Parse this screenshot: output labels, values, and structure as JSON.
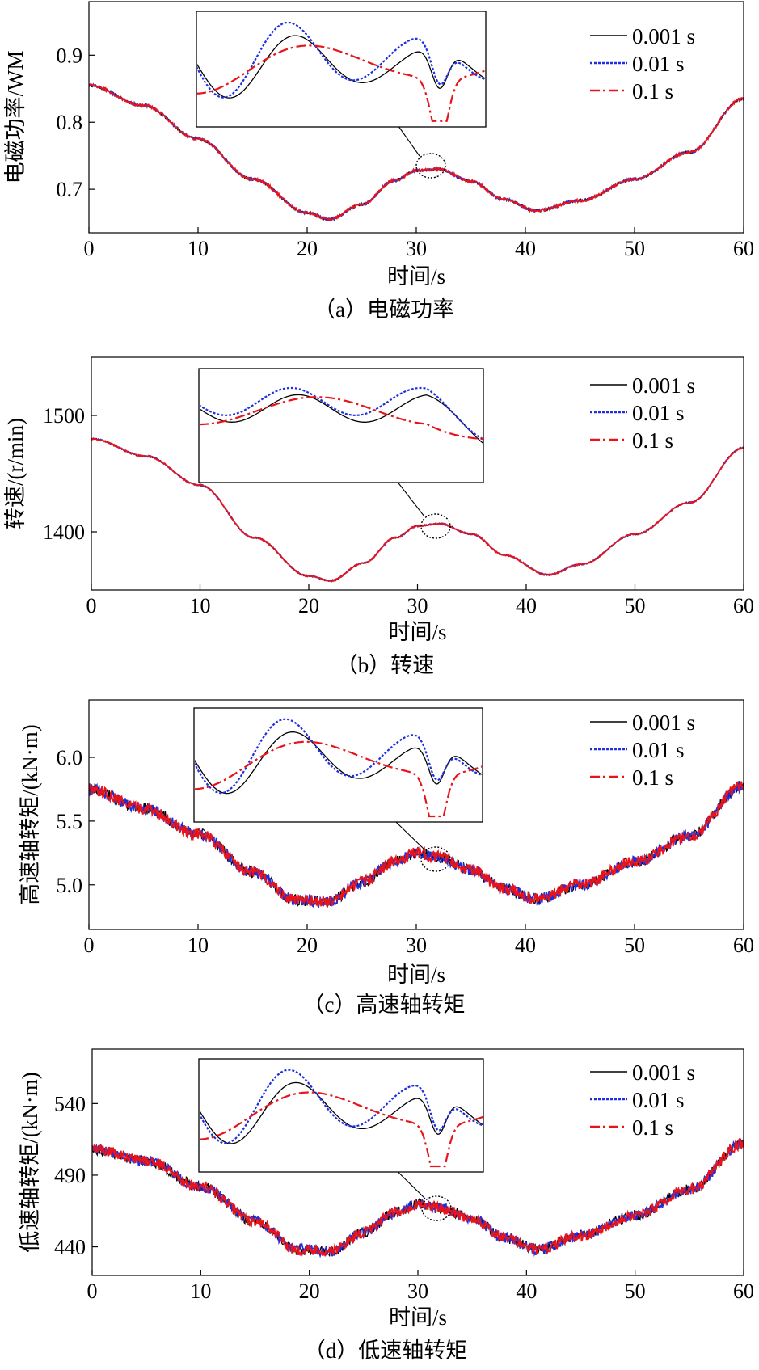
{
  "colors": {
    "s1": "#000000",
    "s2": "#1f2fe0",
    "s3": "#e8141c"
  },
  "chart_data": [
    {
      "type": "line",
      "caption": "（a）电磁功率",
      "xlabel": "时间/s",
      "ylabel": "电磁功率/WM",
      "xlim": [
        0,
        60
      ],
      "ylim": [
        0.635,
        0.98
      ],
      "xticks": [
        "0",
        "10",
        "20",
        "30",
        "40",
        "50",
        "60"
      ],
      "yticks": [
        0.7,
        0.8,
        0.9
      ],
      "ytick_labels": [
        "0.7",
        "0.8",
        "0.9"
      ],
      "x": [
        0,
        5,
        10,
        15,
        20,
        22,
        25,
        28,
        30,
        32,
        35,
        38,
        41,
        45,
        50,
        55,
        60
      ],
      "series": [
        {
          "name": "0.001 s",
          "values": [
            0.855,
            0.825,
            0.775,
            0.715,
            0.665,
            0.655,
            0.677,
            0.713,
            0.728,
            0.73,
            0.712,
            0.685,
            0.668,
            0.683,
            0.715,
            0.755,
            0.835
          ]
        },
        {
          "name": "0.01 s",
          "values": [
            0.855,
            0.825,
            0.775,
            0.715,
            0.665,
            0.655,
            0.677,
            0.713,
            0.728,
            0.73,
            0.712,
            0.685,
            0.668,
            0.683,
            0.715,
            0.755,
            0.835
          ]
        },
        {
          "name": "0.1 s",
          "values": [
            0.855,
            0.825,
            0.775,
            0.715,
            0.665,
            0.655,
            0.677,
            0.713,
            0.728,
            0.73,
            0.712,
            0.685,
            0.668,
            0.683,
            0.715,
            0.755,
            0.835
          ]
        }
      ],
      "noise": 0.002,
      "zoom_circle": {
        "x": 31.5,
        "y": 0.73
      },
      "legend_position": "top-right"
    },
    {
      "type": "line",
      "caption": "（b）转速",
      "xlabel": "时间/s",
      "ylabel": "转速/(r/min)",
      "xlim": [
        0,
        60
      ],
      "ylim": [
        1350,
        1550
      ],
      "xticks": [
        "0",
        "10",
        "20",
        "30",
        "40",
        "50",
        "60"
      ],
      "yticks": [
        1400,
        1500
      ],
      "ytick_labels": [
        "1400",
        "1500"
      ],
      "x": [
        0,
        5,
        10,
        15,
        20,
        22,
        25,
        28,
        30,
        32,
        35,
        38,
        42,
        45,
        50,
        55,
        60
      ],
      "series": [
        {
          "name": "0.001 s",
          "values": [
            1480,
            1465,
            1440,
            1395,
            1362,
            1358,
            1373,
            1395,
            1405,
            1407,
            1398,
            1380,
            1363,
            1372,
            1398,
            1425,
            1472
          ]
        },
        {
          "name": "0.01 s",
          "values": [
            1480,
            1465,
            1440,
            1395,
            1362,
            1358,
            1373,
            1395,
            1405,
            1407,
            1398,
            1380,
            1363,
            1372,
            1398,
            1425,
            1472
          ]
        },
        {
          "name": "0.1 s",
          "values": [
            1480,
            1465,
            1440,
            1395,
            1362,
            1358,
            1373,
            1395,
            1405,
            1407,
            1398,
            1380,
            1363,
            1372,
            1398,
            1425,
            1472
          ]
        }
      ],
      "noise": 0.6,
      "zoom_circle": {
        "x": 31.5,
        "y": 1406
      },
      "legend_position": "top-right"
    },
    {
      "type": "line",
      "caption": "（c）高速轴转矩",
      "xlabel": "时间/s",
      "ylabel": "高速轴转矩/(kN·m)",
      "xlim": [
        0,
        60
      ],
      "ylim": [
        4.65,
        6.45
      ],
      "xticks": [
        "0",
        "10",
        "20",
        "30",
        "40",
        "50",
        "60"
      ],
      "yticks": [
        5.0,
        5.5,
        6.0
      ],
      "ytick_labels": [
        "5.0",
        "5.5",
        "6.0"
      ],
      "x": [
        0,
        5,
        10,
        15,
        19,
        22,
        25,
        28,
        30,
        32,
        35,
        38,
        41,
        45,
        50,
        55,
        60
      ],
      "series": [
        {
          "name": "0.001 s",
          "values": [
            5.75,
            5.6,
            5.4,
            5.1,
            4.88,
            4.87,
            5.02,
            5.18,
            5.25,
            5.22,
            5.12,
            4.97,
            4.89,
            5.0,
            5.18,
            5.38,
            5.78
          ]
        },
        {
          "name": "0.01 s",
          "values": [
            5.75,
            5.6,
            5.4,
            5.1,
            4.88,
            4.87,
            5.02,
            5.18,
            5.25,
            5.22,
            5.12,
            4.97,
            4.89,
            5.0,
            5.18,
            5.38,
            5.78
          ]
        },
        {
          "name": "0.1 s",
          "values": [
            5.75,
            5.6,
            5.4,
            5.1,
            4.88,
            4.87,
            5.02,
            5.18,
            5.25,
            5.22,
            5.12,
            4.97,
            4.89,
            5.0,
            5.18,
            5.38,
            5.78
          ]
        }
      ],
      "noise": 0.045,
      "zoom_circle": {
        "x": 31.8,
        "y": 5.22
      },
      "legend_position": "top-right"
    },
    {
      "type": "line",
      "caption": "（d）低速轴转矩",
      "xlabel": "时间/s",
      "ylabel": "低速轴转矩/(kN·m)",
      "xlim": [
        0,
        60
      ],
      "ylim": [
        420,
        578
      ],
      "xticks": [
        "0",
        "10",
        "20",
        "30",
        "40",
        "50",
        "60"
      ],
      "yticks": [
        440,
        490,
        540
      ],
      "ytick_labels": [
        "440",
        "490",
        "540"
      ],
      "x": [
        0,
        5,
        10,
        15,
        19,
        22,
        25,
        28,
        30,
        32,
        35,
        38,
        41,
        45,
        50,
        55,
        60
      ],
      "series": [
        {
          "name": "0.001 s",
          "values": [
            508,
            500,
            482,
            458,
            438,
            437,
            450,
            464,
            470,
            467,
            460,
            446,
            438,
            448,
            462,
            480,
            512
          ]
        },
        {
          "name": "0.01 s",
          "values": [
            508,
            500,
            482,
            458,
            438,
            437,
            450,
            464,
            470,
            467,
            460,
            446,
            438,
            448,
            462,
            480,
            512
          ]
        },
        {
          "name": "0.1 s",
          "values": [
            508,
            500,
            482,
            458,
            438,
            437,
            450,
            464,
            470,
            467,
            460,
            446,
            438,
            448,
            462,
            480,
            512
          ]
        }
      ],
      "noise": 3.8,
      "zoom_circle": {
        "x": 31.8,
        "y": 468
      },
      "legend_position": "top-right"
    }
  ]
}
